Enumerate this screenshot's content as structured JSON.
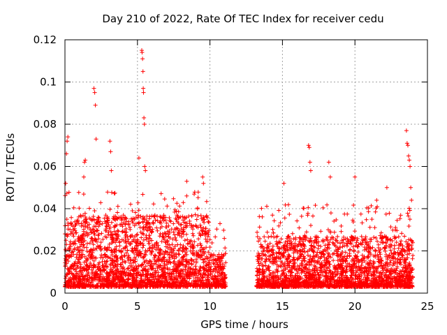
{
  "chart_data": {
    "type": "scatter",
    "title": "Day 210 of 2022, Rate Of TEC Index for receiver cedu",
    "xlabel": "GPS time / hours",
    "ylabel": "ROTI / TECUs",
    "xlim": [
      0,
      25
    ],
    "ylim": [
      0,
      0.12
    ],
    "x_ticks": [
      0,
      5,
      10,
      15,
      20,
      25
    ],
    "x_tick_labels": [
      "0",
      "5",
      "10",
      "15",
      "20",
      "25"
    ],
    "y_ticks": [
      0,
      0.02,
      0.04,
      0.06,
      0.08,
      0.1,
      0.12
    ],
    "y_tick_labels": [
      "0",
      "0.02",
      "0.04",
      "0.06",
      "0.08",
      "0.1",
      "0.12"
    ],
    "grid": true,
    "marker": "+",
    "color": "#ff0000",
    "data_gap_hours": [
      11.1,
      13.2
    ],
    "outliers": [
      {
        "x": 0.05,
        "y": 0.052
      },
      {
        "x": 0.1,
        "y": 0.066
      },
      {
        "x": 0.15,
        "y": 0.072
      },
      {
        "x": 0.2,
        "y": 0.074
      },
      {
        "x": 1.3,
        "y": 0.055
      },
      {
        "x": 1.35,
        "y": 0.062
      },
      {
        "x": 1.4,
        "y": 0.063
      },
      {
        "x": 2.0,
        "y": 0.097
      },
      {
        "x": 2.05,
        "y": 0.095
      },
      {
        "x": 2.1,
        "y": 0.089
      },
      {
        "x": 2.15,
        "y": 0.073
      },
      {
        "x": 3.1,
        "y": 0.072
      },
      {
        "x": 3.15,
        "y": 0.067
      },
      {
        "x": 3.2,
        "y": 0.058
      },
      {
        "x": 5.1,
        "y": 0.064
      },
      {
        "x": 5.3,
        "y": 0.115
      },
      {
        "x": 5.32,
        "y": 0.114
      },
      {
        "x": 5.35,
        "y": 0.111
      },
      {
        "x": 5.38,
        "y": 0.105
      },
      {
        "x": 5.4,
        "y": 0.097
      },
      {
        "x": 5.42,
        "y": 0.095
      },
      {
        "x": 5.45,
        "y": 0.083
      },
      {
        "x": 5.48,
        "y": 0.08
      },
      {
        "x": 5.5,
        "y": 0.06
      },
      {
        "x": 5.55,
        "y": 0.058
      },
      {
        "x": 8.4,
        "y": 0.053
      },
      {
        "x": 9.5,
        "y": 0.055
      },
      {
        "x": 9.55,
        "y": 0.052
      },
      {
        "x": 15.1,
        "y": 0.052
      },
      {
        "x": 16.8,
        "y": 0.07
      },
      {
        "x": 16.85,
        "y": 0.069
      },
      {
        "x": 16.9,
        "y": 0.062
      },
      {
        "x": 16.95,
        "y": 0.058
      },
      {
        "x": 18.2,
        "y": 0.062
      },
      {
        "x": 18.3,
        "y": 0.055
      },
      {
        "x": 20.0,
        "y": 0.055
      },
      {
        "x": 21.5,
        "y": 0.044
      },
      {
        "x": 22.2,
        "y": 0.05
      },
      {
        "x": 23.55,
        "y": 0.077
      },
      {
        "x": 23.6,
        "y": 0.071
      },
      {
        "x": 23.65,
        "y": 0.07
      },
      {
        "x": 23.7,
        "y": 0.065
      },
      {
        "x": 23.75,
        "y": 0.063
      },
      {
        "x": 23.8,
        "y": 0.06
      },
      {
        "x": 23.85,
        "y": 0.05
      },
      {
        "x": 23.9,
        "y": 0.044
      }
    ]
  }
}
